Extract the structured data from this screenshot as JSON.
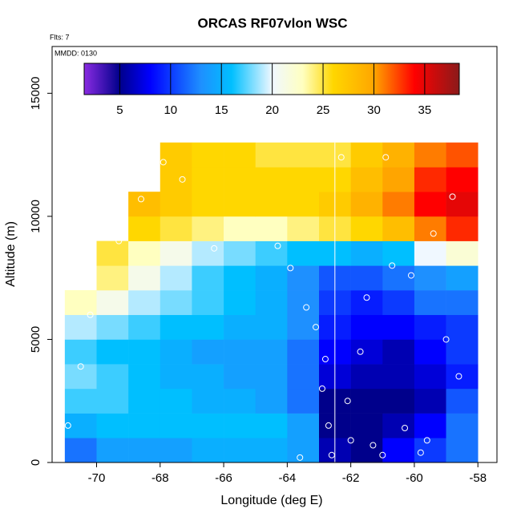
{
  "chart_data": {
    "type": "heatmap",
    "title": "ORCAS RF07vlon WSC",
    "note_flights": "Flts: 7",
    "note_date": "MMDD: 0130",
    "xlabel": "Longitude (deg E)",
    "ylabel": "Altitude (m)",
    "xlim": [
      -71.4,
      -57.4
    ],
    "xticks": [
      -70,
      -68,
      -66,
      -64,
      -62,
      -60,
      -58
    ],
    "ylim": [
      0,
      16900
    ],
    "yticks": [
      0,
      5000,
      10000,
      15000
    ],
    "x_edges": [
      -71,
      -70,
      -69,
      -68,
      -67,
      -66,
      -65,
      -64,
      -63,
      -62,
      -61,
      -60,
      -59,
      -58
    ],
    "y_edges": [
      0,
      1000,
      2000,
      3000,
      4000,
      5000,
      6000,
      7000,
      8000,
      9000,
      10000,
      11000,
      12000,
      13000
    ],
    "z": [
      [
        12,
        14,
        14,
        14,
        15,
        15,
        15,
        14,
        6,
        5,
        8,
        10,
        12
      ],
      [
        15,
        16,
        16,
        16,
        16,
        16,
        16,
        14,
        5,
        5,
        6,
        8,
        12
      ],
      [
        17,
        17,
        16,
        16,
        15,
        15,
        14,
        12,
        5,
        5,
        5,
        6,
        11
      ],
      [
        18,
        17,
        16,
        15,
        15,
        14,
        14,
        12,
        7,
        6,
        6,
        7,
        9
      ],
      [
        17,
        16,
        16,
        15,
        14,
        14,
        14,
        12,
        8,
        7,
        6,
        8,
        10
      ],
      [
        19,
        18,
        17,
        16,
        16,
        15,
        15,
        13,
        9,
        8,
        8,
        9,
        10
      ],
      [
        23,
        21,
        19,
        18,
        17,
        16,
        15,
        13,
        10,
        9,
        10,
        12,
        12
      ],
      [
        null,
        24,
        21,
        19,
        17,
        16,
        15,
        13,
        11,
        11,
        12,
        13,
        14
      ],
      [
        null,
        25,
        23,
        21,
        19,
        18,
        17,
        16,
        16,
        15,
        16,
        20,
        22
      ],
      [
        null,
        null,
        26,
        25,
        24,
        23,
        23,
        24,
        25,
        26,
        28,
        31,
        33
      ],
      [
        null,
        null,
        28,
        27,
        26,
        26,
        26,
        26,
        27,
        29,
        31,
        34,
        35
      ],
      [
        null,
        null,
        null,
        27,
        26,
        26,
        26,
        26,
        26,
        28,
        30,
        33,
        34
      ],
      [
        null,
        null,
        null,
        27,
        26,
        26,
        25,
        25,
        25,
        27,
        29,
        31,
        32
      ]
    ],
    "colorbar_lim": [
      1.5,
      38.4
    ],
    "colorbar_ticks": [
      5,
      10,
      15,
      20,
      25,
      30,
      35
    ],
    "colorscale": [
      {
        "value": 1.5,
        "color": "#8a2be2"
      },
      {
        "value": 5,
        "color": "#00008b"
      },
      {
        "value": 8,
        "color": "#0000ff"
      },
      {
        "value": 13,
        "color": "#1e90ff"
      },
      {
        "value": 16,
        "color": "#00bfff"
      },
      {
        "value": 20,
        "color": "#f0f8ff"
      },
      {
        "value": 23,
        "color": "#ffffc0"
      },
      {
        "value": 26,
        "color": "#ffd700"
      },
      {
        "value": 30,
        "color": "#ffa500"
      },
      {
        "value": 34,
        "color": "#ff0000"
      },
      {
        "value": 38.4,
        "color": "#8b1a1a"
      }
    ],
    "vline": -62.5,
    "points": {
      "x": [
        -70.9,
        -70.5,
        -70.2,
        -69.3,
        -68.6,
        -67.9,
        -67.3,
        -66.3,
        -64.3,
        -63.9,
        -63.4,
        -63.1,
        -62.9,
        -62.7,
        -62.6,
        -62.3,
        -62.0,
        -61.7,
        -61.3,
        -61.0,
        -60.7,
        -60.3,
        -60.1,
        -59.8,
        -59.4,
        -59.0,
        -58.8,
        -58.6,
        -62.1,
        -61.5,
        -60.9,
        -59.6,
        -63.6,
        -62.8
      ],
      "y": [
        1500,
        3900,
        6000,
        9000,
        10700,
        12200,
        11500,
        8700,
        8800,
        7900,
        6300,
        5500,
        3000,
        1500,
        300,
        12400,
        900,
        4500,
        700,
        300,
        8000,
        1400,
        7600,
        400,
        9300,
        5000,
        10800,
        3500,
        2500,
        6700,
        12400,
        900,
        200,
        4200
      ]
    },
    "point_color": "#ffffff",
    "line_color": "#ffffff"
  }
}
